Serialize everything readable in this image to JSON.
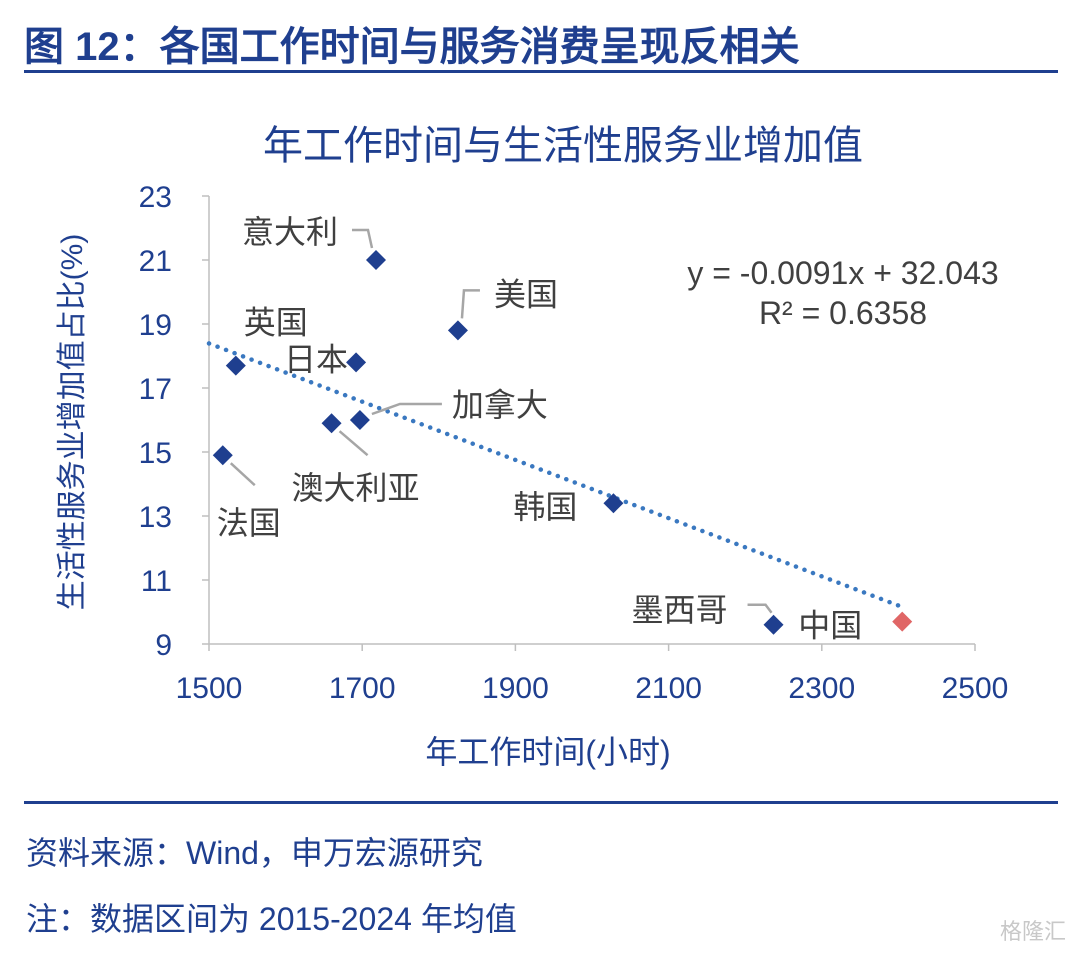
{
  "figure": {
    "title": "图 12：各国工作时间与服务消费呈现反相关",
    "source": "资料来源：Wind，申万宏源研究",
    "note": "注：数据区间为 2015-2024 年均值",
    "watermark": "格隆汇"
  },
  "chart_data": {
    "type": "scatter",
    "title": "年工作时间与生活性服务业增加值",
    "xlabel": "年工作时间(小时)",
    "ylabel": "生活性服务业增加值占比(%)",
    "xlim": [
      1500,
      2500
    ],
    "ylim": [
      9,
      23
    ],
    "xticks": [
      1500,
      1700,
      1900,
      2100,
      2300,
      2500
    ],
    "yticks": [
      9,
      11,
      13,
      15,
      17,
      19,
      21,
      23
    ],
    "grid": false,
    "points": [
      {
        "label": "意大利",
        "x": 1718,
        "y": 21.0,
        "color": "#1f3f8f"
      },
      {
        "label": "美国",
        "x": 1825,
        "y": 18.8,
        "color": "#1f3f8f"
      },
      {
        "label": "日本",
        "x": 1692,
        "y": 17.8,
        "color": "#1f3f8f"
      },
      {
        "label": "英国",
        "x": 1535,
        "y": 17.7,
        "color": "#1f3f8f"
      },
      {
        "label": "加拿大",
        "x": 1697,
        "y": 16.0,
        "color": "#1f3f8f"
      },
      {
        "label": "澳大利亚",
        "x": 1660,
        "y": 15.9,
        "color": "#1f3f8f"
      },
      {
        "label": "法国",
        "x": 1518,
        "y": 14.9,
        "color": "#1f3f8f"
      },
      {
        "label": "韩国",
        "x": 2028,
        "y": 13.4,
        "color": "#1f3f8f"
      },
      {
        "label": "墨西哥",
        "x": 2237,
        "y": 9.6,
        "color": "#1f3f8f"
      },
      {
        "label": "中国",
        "x": 2405,
        "y": 9.7,
        "color": "#e06666"
      }
    ],
    "trendline": {
      "slope": -0.0091,
      "intercept": 32.043,
      "x_range": [
        1500,
        2400
      ],
      "equation": "y = -0.0091x + 32.043",
      "r2": "R² = 0.6358",
      "color": "#3a78c0",
      "style": "dotted"
    },
    "colors": {
      "title": "#1f3f8f",
      "axis": "#bfbfbf",
      "tick_label": "#1f3f8f",
      "point_label": "#404040",
      "leader": "#a6a6a6"
    }
  }
}
